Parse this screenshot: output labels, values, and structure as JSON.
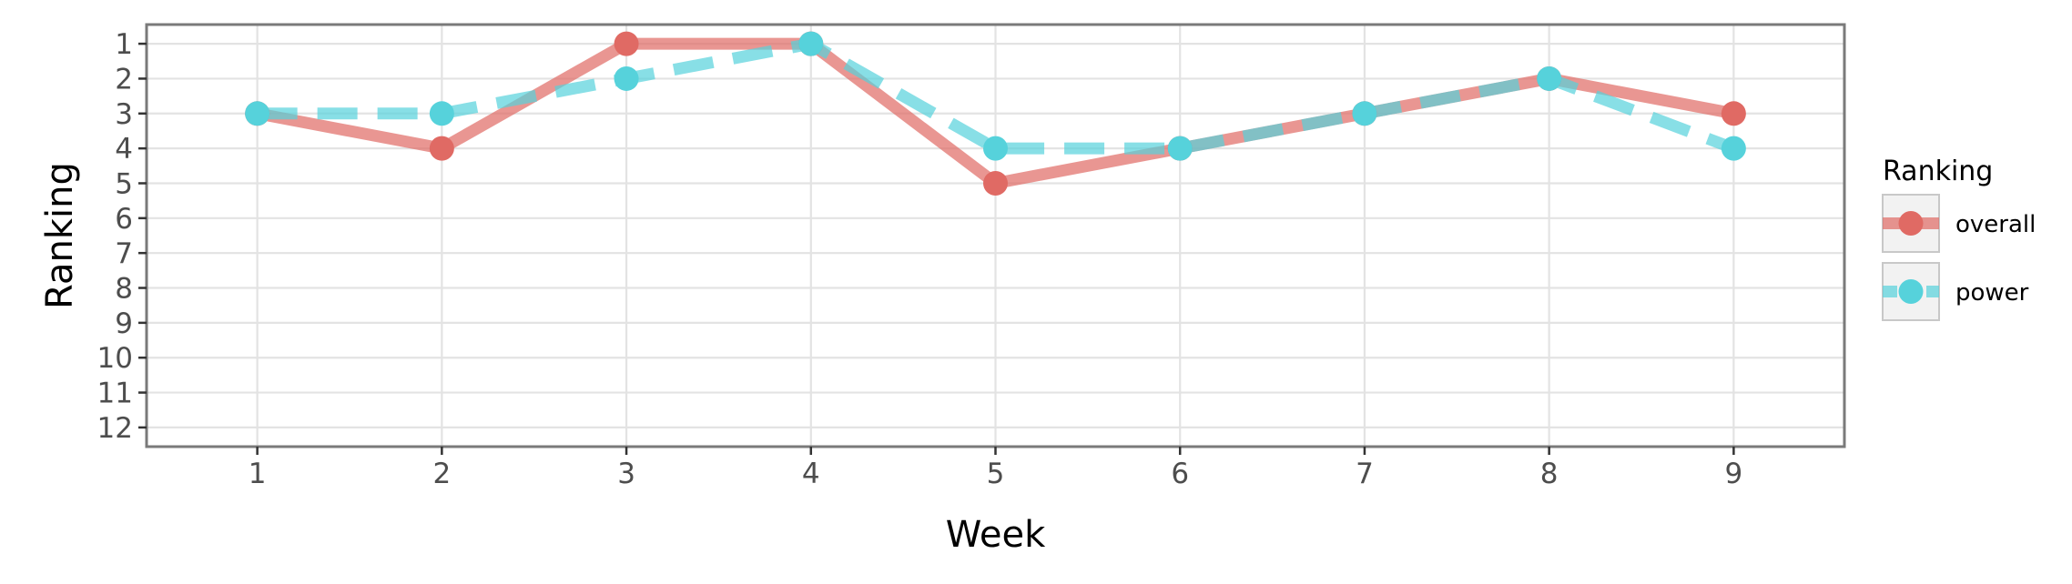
{
  "chart_data": {
    "type": "line",
    "title": "",
    "xlabel": "Week",
    "ylabel": "Ranking",
    "x": [
      1,
      2,
      3,
      4,
      5,
      6,
      7,
      8,
      9
    ],
    "x_ticks": [
      "1",
      "2",
      "3",
      "4",
      "5",
      "6",
      "7",
      "8",
      "9"
    ],
    "y_ticks": [
      "1",
      "2",
      "3",
      "4",
      "5",
      "6",
      "7",
      "8",
      "9",
      "10",
      "11",
      "12"
    ],
    "xlim": [
      0.4,
      9.6
    ],
    "ylim": [
      12.55,
      0.45
    ],
    "y_reversed": true,
    "grid": true,
    "legend": {
      "title": "Ranking",
      "position": "right"
    },
    "series": [
      {
        "name": "overall",
        "values": [
          3,
          4,
          1,
          1,
          5,
          4,
          3,
          2,
          3
        ],
        "color": "#E06A64",
        "line_style": "solid"
      },
      {
        "name": "power",
        "values": [
          3,
          3,
          2,
          1,
          4,
          4,
          3,
          2,
          4
        ],
        "color": "#56D2DB",
        "line_style": "dashed"
      }
    ]
  }
}
